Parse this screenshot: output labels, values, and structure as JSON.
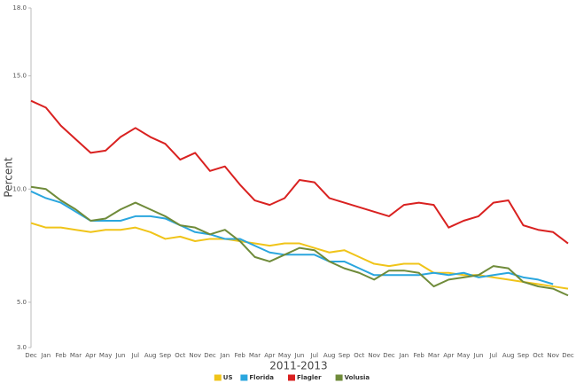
{
  "chart_data": {
    "type": "line",
    "xlabel": "2011-2013",
    "ylabel": "Percent",
    "categories": [
      "Dec",
      "Jan",
      "Feb",
      "Mar",
      "Apr",
      "May",
      "Jun",
      "Jul",
      "Aug",
      "Sep",
      "Oct",
      "Nov",
      "Dec",
      "Jan",
      "Feb",
      "Mar",
      "Apr",
      "May",
      "Jun",
      "Jul",
      "Aug",
      "Sep",
      "Oct",
      "Nov",
      "Dec",
      "Jan",
      "Feb",
      "Mar",
      "Apr",
      "May",
      "Jun",
      "Jul",
      "Aug",
      "Sep",
      "Oct",
      "Nov",
      "Dec"
    ],
    "ylim": [
      3,
      18
    ],
    "yticks": [
      {
        "value": 3,
        "label": "3.0"
      },
      {
        "value": 5,
        "label": "5.0"
      },
      {
        "value": 10,
        "label": "10.0"
      },
      {
        "value": 15,
        "label": "15.0"
      },
      {
        "value": 18,
        "label": "18.0"
      }
    ],
    "legend": "bottom",
    "series": [
      {
        "name": "US",
        "color": "#f0c419",
        "values": [
          8.5,
          8.3,
          8.3,
          8.2,
          8.1,
          8.2,
          8.2,
          8.3,
          8.1,
          7.8,
          7.9,
          7.7,
          7.8,
          7.8,
          7.7,
          7.6,
          7.5,
          7.6,
          7.6,
          7.4,
          7.2,
          7.3,
          7.0,
          6.7,
          6.6,
          6.7,
          6.7,
          6.3,
          6.3,
          6.2,
          6.2,
          6.1,
          6.0,
          5.9,
          5.8,
          5.7,
          5.6
        ]
      },
      {
        "name": "Florida",
        "color": "#2aa6de",
        "values": [
          9.9,
          9.6,
          9.4,
          9.0,
          8.6,
          8.6,
          8.6,
          8.8,
          8.8,
          8.7,
          8.4,
          8.1,
          8.0,
          7.8,
          7.8,
          7.5,
          7.2,
          7.1,
          7.1,
          7.1,
          6.8,
          6.8,
          6.5,
          6.2,
          6.2,
          6.2,
          6.2,
          6.3,
          6.2,
          6.3,
          6.1,
          6.2,
          6.3,
          6.1,
          6.0,
          5.8,
          null
        ]
      },
      {
        "name": "Flagler",
        "color": "#d92120",
        "values": [
          13.9,
          13.6,
          12.8,
          12.2,
          11.6,
          11.7,
          12.3,
          12.7,
          12.3,
          12.0,
          11.3,
          11.6,
          10.8,
          11.0,
          10.2,
          9.5,
          9.3,
          9.6,
          10.4,
          10.3,
          9.6,
          9.4,
          9.2,
          9.0,
          8.8,
          9.3,
          9.4,
          9.3,
          8.3,
          8.6,
          8.8,
          9.4,
          9.5,
          8.4,
          8.2,
          8.1,
          7.6
        ]
      },
      {
        "name": "Volusia",
        "color": "#6f8b3a",
        "values": [
          10.1,
          10.0,
          9.5,
          9.1,
          8.6,
          8.7,
          9.1,
          9.4,
          9.1,
          8.8,
          8.4,
          8.3,
          8.0,
          8.2,
          7.7,
          7.0,
          6.8,
          7.1,
          7.4,
          7.3,
          6.8,
          6.5,
          6.3,
          6.0,
          6.4,
          6.4,
          6.3,
          5.7,
          6.0,
          6.1,
          6.2,
          6.6,
          6.5,
          5.9,
          5.7,
          5.6,
          5.3
        ]
      }
    ]
  }
}
